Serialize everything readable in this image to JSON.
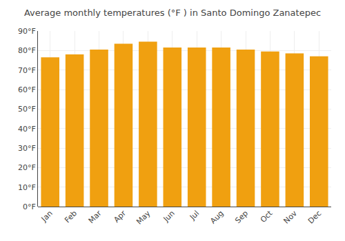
{
  "chart_data": {
    "type": "bar",
    "title": "Average monthly temperatures (°F ) in Santo Domingo Zanatepec",
    "categories": [
      "Jan",
      "Feb",
      "Mar",
      "Apr",
      "May",
      "Jun",
      "Jul",
      "Aug",
      "Sep",
      "Oct",
      "Nov",
      "Dec"
    ],
    "values": [
      76.5,
      78,
      80.5,
      83.5,
      84.5,
      81.5,
      81.5,
      81.5,
      80.5,
      79.5,
      78.5,
      77
    ],
    "color": "#F0A010",
    "ylim": [
      0,
      90
    ],
    "yticks": [
      {
        "value": 0,
        "label": "0°F"
      },
      {
        "value": 10,
        "label": "10°F"
      },
      {
        "value": 20,
        "label": "20°F"
      },
      {
        "value": 30,
        "label": "30°F"
      },
      {
        "value": 40,
        "label": "40°F"
      },
      {
        "value": 50,
        "label": "50°F"
      },
      {
        "value": 60,
        "label": "60°F"
      },
      {
        "value": 70,
        "label": "70°F"
      },
      {
        "value": 80,
        "label": "80°F"
      },
      {
        "value": 90,
        "label": "90°F"
      }
    ],
    "grid": true
  }
}
